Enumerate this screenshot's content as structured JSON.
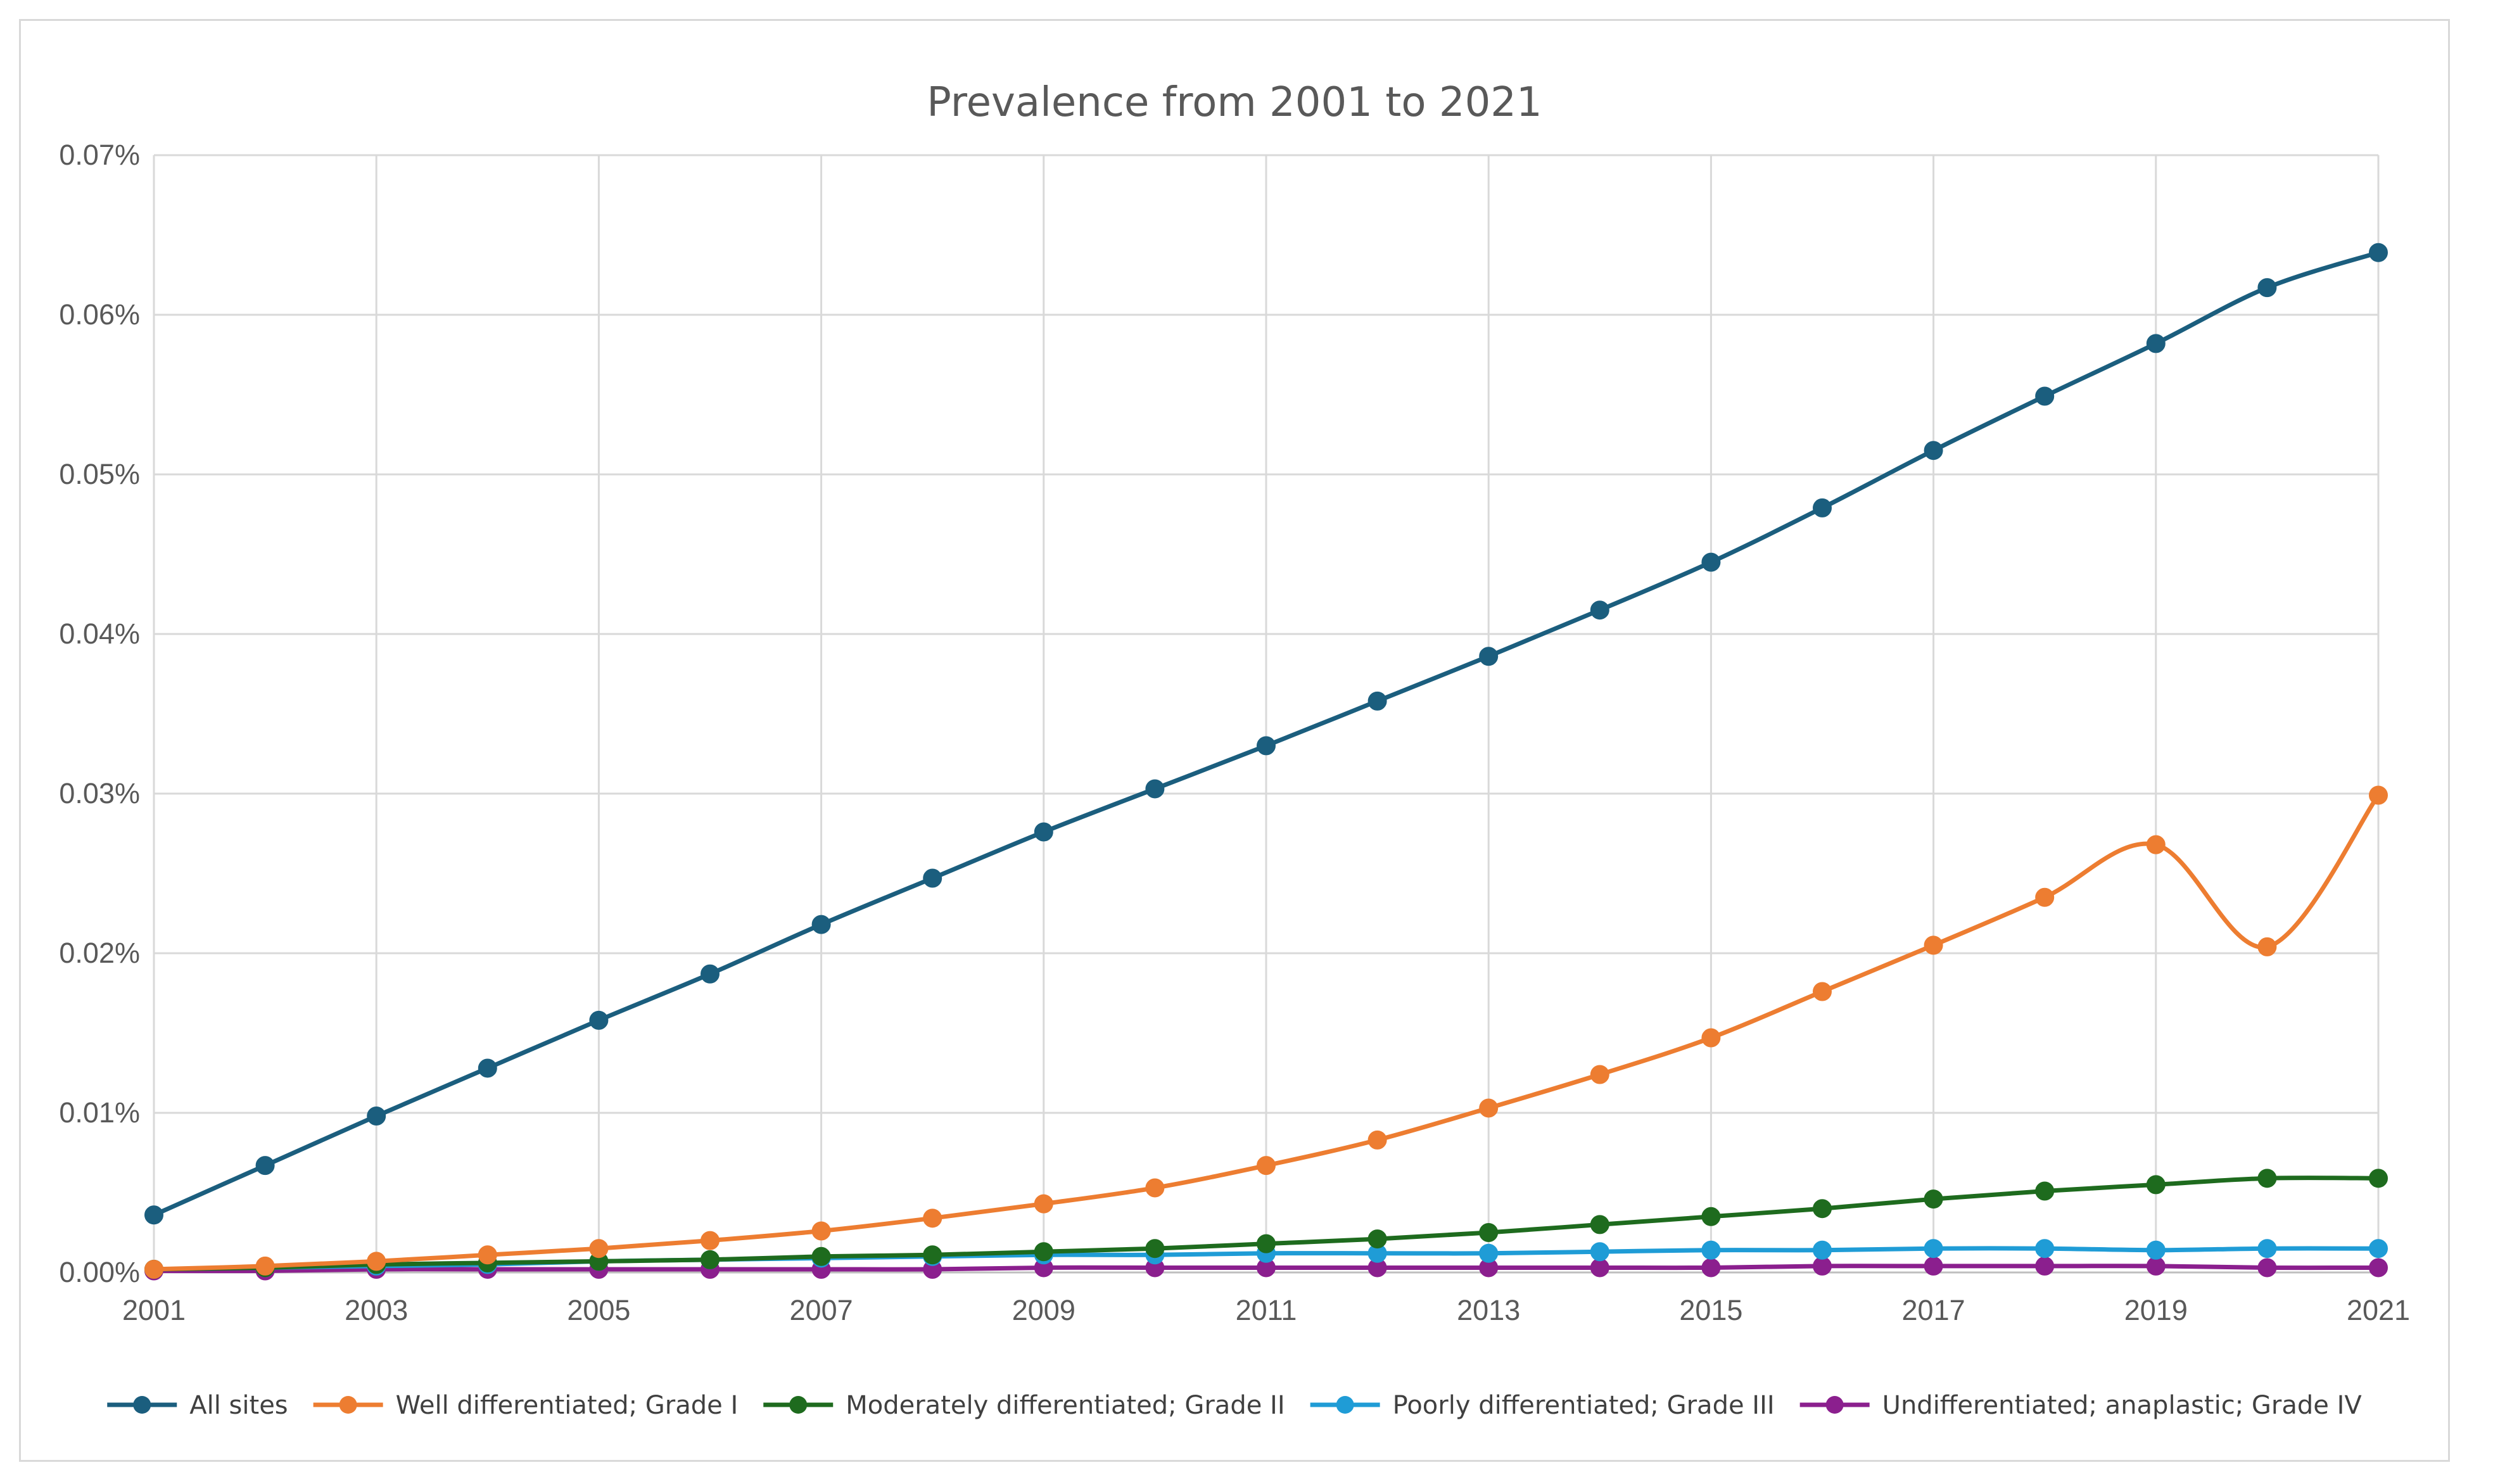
{
  "chart_data": {
    "type": "line",
    "title": "Prevalence from 2001 to 2021",
    "xlabel": "",
    "ylabel": "",
    "x": [
      2001,
      2002,
      2003,
      2004,
      2005,
      2006,
      2007,
      2008,
      2009,
      2010,
      2011,
      2012,
      2013,
      2014,
      2015,
      2016,
      2017,
      2018,
      2019,
      2020,
      2021
    ],
    "x_tick_labels": [
      "2001",
      "2003",
      "2005",
      "2007",
      "2009",
      "2011",
      "2013",
      "2015",
      "2017",
      "2019",
      "2021"
    ],
    "y_tick_labels": [
      "0.00%",
      "0.01%",
      "0.02%",
      "0.03%",
      "0.04%",
      "0.05%",
      "0.06%",
      "0.07%"
    ],
    "ylim": [
      0,
      0.07
    ],
    "y_unit": "%",
    "grid": true,
    "legend_position": "bottom",
    "series": [
      {
        "name": "All sites",
        "color": "#1b5e7e",
        "values": [
          0.0036,
          0.0067,
          0.0098,
          0.0128,
          0.0158,
          0.0187,
          0.0218,
          0.0247,
          0.0276,
          0.0303,
          0.033,
          0.0358,
          0.0386,
          0.0415,
          0.0445,
          0.0479,
          0.0515,
          0.0549,
          0.0582,
          0.0617,
          0.0639
        ]
      },
      {
        "name": "Well differentiated; Grade I",
        "color": "#ed7d31",
        "values": [
          0.0002,
          0.0004,
          0.0007,
          0.0011,
          0.0015,
          0.002,
          0.0026,
          0.0034,
          0.0043,
          0.0053,
          0.0067,
          0.0083,
          0.0103,
          0.0124,
          0.0147,
          0.0176,
          0.0205,
          0.0235,
          0.0268,
          0.0204,
          0.0299
        ]
      },
      {
        "name": "Moderately differentiated; Grade II",
        "color": "#1e6b1e",
        "values": [
          0.0002,
          0.0003,
          0.0005,
          0.0006,
          0.0007,
          0.0008,
          0.001,
          0.0011,
          0.0013,
          0.0015,
          0.0018,
          0.0021,
          0.0025,
          0.003,
          0.0035,
          0.004,
          0.0046,
          0.0051,
          0.0055,
          0.0059,
          0.0059
        ]
      },
      {
        "name": "Poorly differentiated; Grade III",
        "color": "#1f9cd6",
        "values": [
          0.0002,
          0.0003,
          0.0004,
          0.0005,
          0.0007,
          0.0008,
          0.0009,
          0.001,
          0.0011,
          0.0011,
          0.0012,
          0.0012,
          0.0012,
          0.0013,
          0.0014,
          0.0014,
          0.0015,
          0.0015,
          0.0014,
          0.0015,
          0.0015
        ]
      },
      {
        "name": "Undifferentiated; anaplastic; Grade IV",
        "color": "#8b1f8e",
        "values": [
          0.0001,
          0.0001,
          0.0002,
          0.0002,
          0.0002,
          0.0002,
          0.0002,
          0.0002,
          0.0003,
          0.0003,
          0.0003,
          0.0003,
          0.0003,
          0.0003,
          0.0003,
          0.0004,
          0.0004,
          0.0004,
          0.0004,
          0.0003,
          0.0003
        ]
      }
    ]
  }
}
